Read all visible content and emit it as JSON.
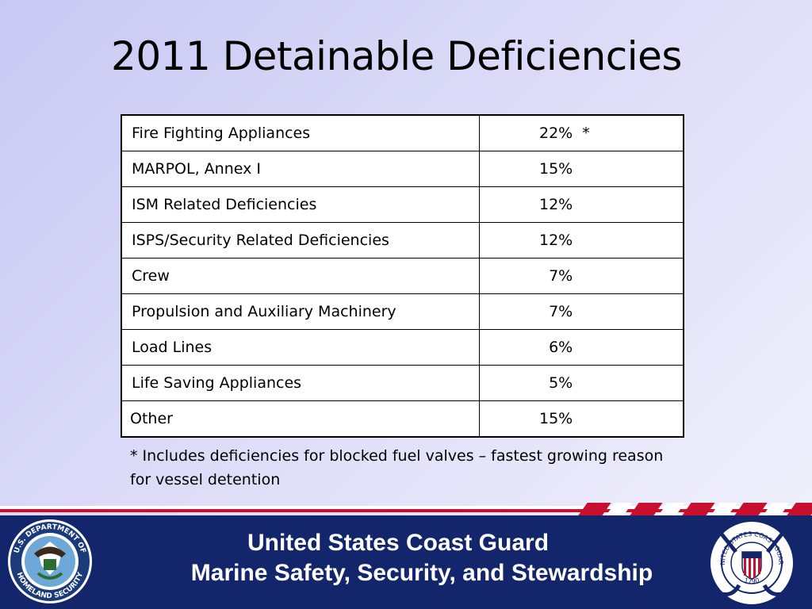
{
  "slide": {
    "title": "2011 Detainable Deficiencies"
  },
  "table": {
    "rows": [
      {
        "category": "Fire Fighting Appliances",
        "percent": "22%  *"
      },
      {
        "category": "MARPOL, Annex I",
        "percent": "15%"
      },
      {
        "category": "ISM Related Deficiencies",
        "percent": "12%"
      },
      {
        "category": "ISPS/Security Related Deficiencies",
        "percent": "12%"
      },
      {
        "category": "Crew",
        "percent": "  7%"
      },
      {
        "category": "Propulsion and Auxiliary Machinery",
        "percent": "  7%"
      },
      {
        "category": "Load Lines",
        "percent": "  6%"
      },
      {
        "category": "Life Saving Appliances",
        "percent": "  5%"
      },
      {
        "category": "Other",
        "percent": "15%"
      }
    ]
  },
  "footnote": {
    "text": "*  Includes deficiencies for blocked fuel valves – fastest growing reason for vessel detention"
  },
  "footer": {
    "line1": "United States Coast Guard",
    "line2": "Marine Safety, Security, and Stewardship",
    "dhs_seal": {
      "icon": "dhs-seal-icon",
      "top_text": "U.S. DEPARTMENT OF",
      "bottom_text": "HOMELAND SECURITY"
    },
    "uscg_seal": {
      "icon": "uscg-seal-icon",
      "ring_text": "UNITED STATES COAST GUARD",
      "year": "1790"
    }
  },
  "colors": {
    "footer_band": "#13256b",
    "stripe_red": "#c8102e",
    "background": "#dcdcf8"
  }
}
